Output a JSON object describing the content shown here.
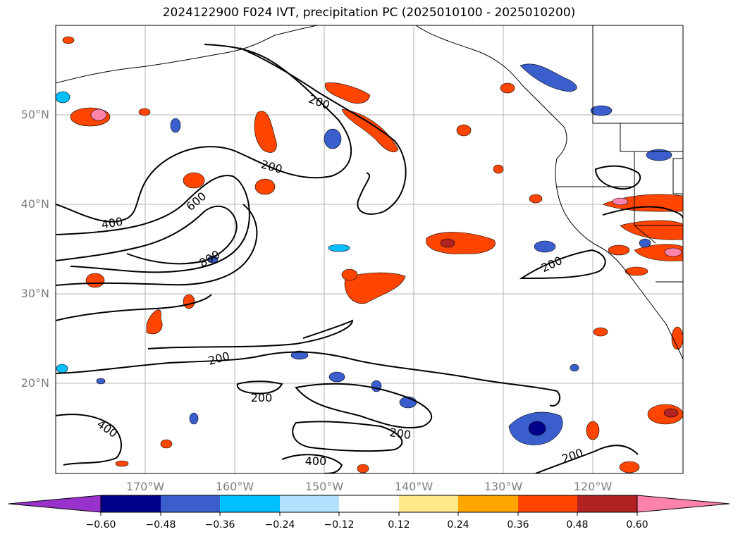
{
  "title": "2024122900 F024 IVT, precipitation PC (2025010100 - 2025010200)",
  "latitude_labels": [
    "50°N",
    "40°N",
    "30°N",
    "20°N"
  ],
  "longitude_labels": [
    "170°W",
    "160°W",
    "150°W",
    "140°W",
    "130°W",
    "120°W"
  ],
  "ivt_contour_labels": [
    "200",
    "200",
    "200",
    "200",
    "200",
    "200",
    "200",
    "400",
    "400",
    "400",
    "600",
    "800"
  ],
  "colorbar": {
    "ticks": [
      "−0.60",
      "−0.48",
      "−0.36",
      "−0.24",
      "−0.12",
      "0.12",
      "0.24",
      "0.36",
      "0.48",
      "0.60"
    ],
    "colors": [
      "#9932cc",
      "#00008b",
      "#3a5fcd",
      "#00bfff",
      "#b0e2ff",
      "#ffffff",
      "#ffe98a",
      "#ffa500",
      "#ff4500",
      "#b22222",
      "#ff82ab"
    ]
  }
}
